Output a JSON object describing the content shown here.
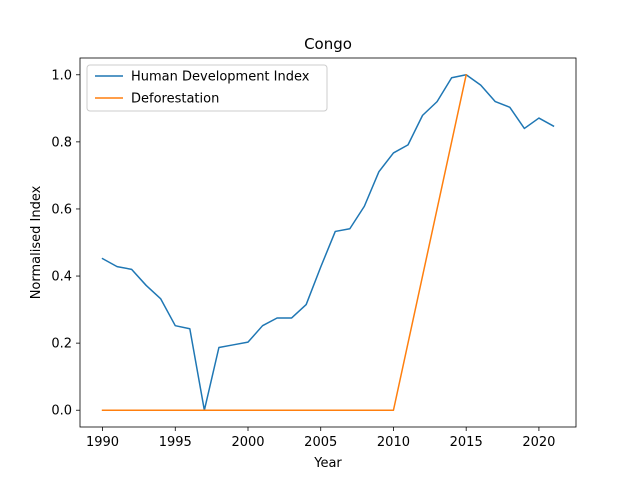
{
  "chart_data": {
    "type": "line",
    "title": "Congo",
    "xlabel": "Year",
    "ylabel": "Normalised Index",
    "xlim": [
      1988.45,
      2022.55
    ],
    "ylim": [
      -0.05,
      1.05
    ],
    "xticks": [
      1990,
      1995,
      2000,
      2005,
      2010,
      2015,
      2020
    ],
    "yticks": [
      0.0,
      0.2,
      0.4,
      0.6,
      0.8,
      1.0
    ],
    "ytick_labels": [
      "0.0",
      "0.2",
      "0.4",
      "0.6",
      "0.8",
      "1.0"
    ],
    "grid": false,
    "legend_position": "top-left",
    "series": [
      {
        "name": "Human Development Index",
        "color": "#1f77b4",
        "x": [
          1990,
          1991,
          1992,
          1993,
          1994,
          1995,
          1996,
          1997,
          1998,
          1999,
          2000,
          2001,
          2002,
          2003,
          2004,
          2005,
          2006,
          2007,
          2008,
          2009,
          2010,
          2011,
          2012,
          2013,
          2014,
          2015,
          2016,
          2017,
          2018,
          2019,
          2020,
          2021
        ],
        "y": [
          0.452,
          0.428,
          0.42,
          0.372,
          0.332,
          0.252,
          0.243,
          0.0,
          0.187,
          0.195,
          0.203,
          0.252,
          0.275,
          0.275,
          0.315,
          0.427,
          0.533,
          0.541,
          0.608,
          0.711,
          0.767,
          0.791,
          0.879,
          0.92,
          0.991,
          1.0,
          0.969,
          0.92,
          0.903,
          0.84,
          0.871,
          0.847
        ]
      },
      {
        "name": "Deforestation",
        "color": "#ff7f0e",
        "x": [
          1990,
          2010,
          2015
        ],
        "y": [
          0.0,
          0.0,
          1.0
        ]
      }
    ]
  }
}
